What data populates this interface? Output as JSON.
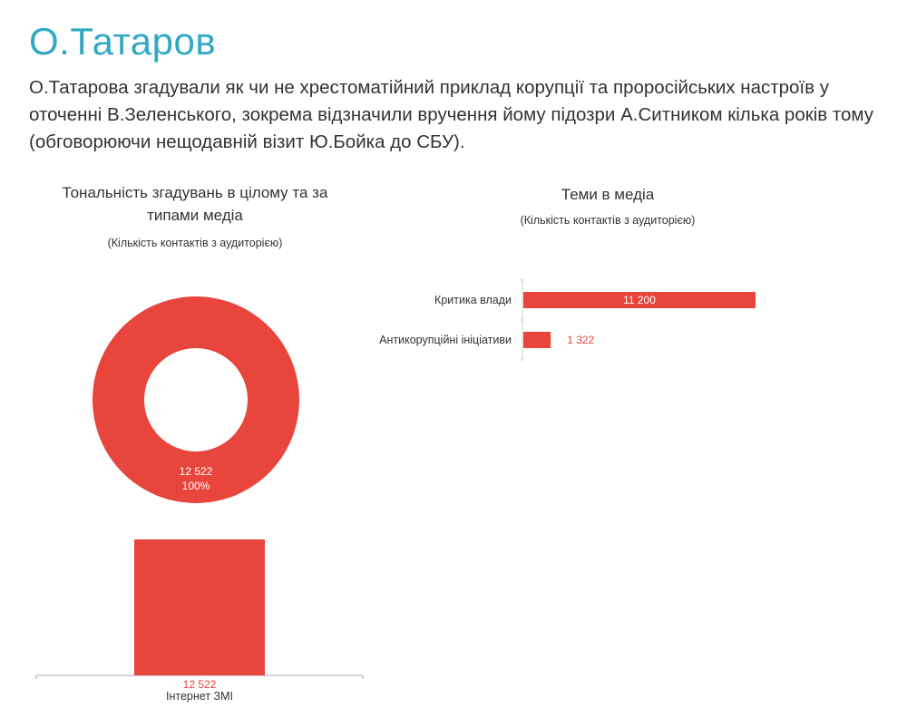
{
  "page": {
    "title": "О.Татаров",
    "description": "О.Татарова згадували як чи не хрестоматійний приклад корупції та проросійських настроїв у оточенні В.Зеленського, зокрема відзначили вручення йому підозри А.Ситником кілька років тому (обговорюючи нещодавній візит Ю.Бойка до СБУ)."
  },
  "chart_data": [
    {
      "type": "pie",
      "variant": "donut",
      "title": "Тональність згадувань в цілому та за типами медіа",
      "subtitle": "(Кількість контактів з аудиторією)",
      "slices": [
        {
          "value": 12522,
          "label": "12 522",
          "percent_label": "100%",
          "color": "#e8453c"
        }
      ]
    },
    {
      "type": "bar",
      "orientation": "vertical",
      "categories": [
        "Інтернет ЗМІ"
      ],
      "values": [
        12522
      ],
      "value_labels": [
        "12 522"
      ],
      "color": "#e8453c",
      "ylim": [
        0,
        12522
      ]
    },
    {
      "type": "bar",
      "orientation": "horizontal",
      "title": "Теми в медіа",
      "subtitle": "(Кількість контактів з аудиторією)",
      "categories": [
        "Критика влади",
        "Антикорупційні ініціативи"
      ],
      "values": [
        11200,
        1322
      ],
      "value_labels": [
        "11 200",
        "1 322"
      ],
      "color": "#e8453c",
      "xlim": [
        0,
        11200
      ]
    }
  ]
}
